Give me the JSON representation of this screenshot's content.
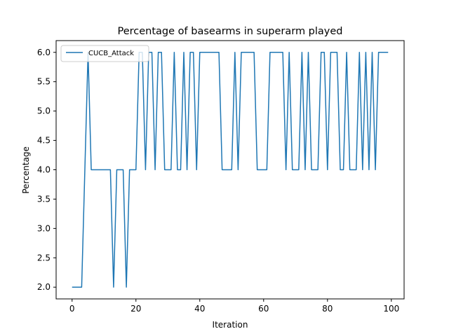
{
  "chart_data": {
    "type": "line",
    "title": "Percentage of basearms in superarm played",
    "xlabel": "Iteration",
    "ylabel": "Percentage",
    "xlim": [
      -5,
      104
    ],
    "ylim": [
      1.8,
      6.2
    ],
    "xticks": [
      0,
      20,
      40,
      60,
      80,
      100
    ],
    "yticks": [
      2.0,
      2.5,
      3.0,
      3.5,
      4.0,
      4.5,
      5.0,
      5.5,
      6.0
    ],
    "grid": false,
    "legend_position": "top-left",
    "series": [
      {
        "name": "CUCB_Attack",
        "color": "#1f77b4",
        "x": [
          0,
          1,
          2,
          3,
          4,
          5,
          6,
          7,
          8,
          9,
          10,
          11,
          12,
          13,
          14,
          15,
          16,
          17,
          18,
          19,
          20,
          21,
          22,
          23,
          24,
          25,
          26,
          27,
          28,
          29,
          30,
          31,
          32,
          33,
          34,
          35,
          36,
          37,
          38,
          39,
          40,
          41,
          42,
          43,
          44,
          45,
          46,
          47,
          48,
          49,
          50,
          51,
          52,
          53,
          54,
          55,
          56,
          57,
          58,
          59,
          60,
          61,
          62,
          63,
          64,
          65,
          66,
          67,
          68,
          69,
          70,
          71,
          72,
          73,
          74,
          75,
          76,
          77,
          78,
          79,
          80,
          81,
          82,
          83,
          84,
          85,
          86,
          87,
          88,
          89,
          90,
          91,
          92,
          93,
          94,
          95,
          96,
          97,
          98,
          99
        ],
        "y": [
          2,
          2,
          2,
          2,
          4,
          6,
          4,
          4,
          4,
          4,
          4,
          4,
          4,
          2,
          4,
          4,
          4,
          2,
          4,
          4,
          4,
          6,
          6,
          4,
          6,
          6,
          4,
          6,
          6,
          4,
          4,
          4,
          6,
          4,
          4,
          6,
          4,
          6,
          6,
          4,
          6,
          6,
          6,
          6,
          6,
          6,
          6,
          4,
          4,
          4,
          4,
          6,
          4,
          6,
          6,
          6,
          6,
          6,
          4,
          4,
          4,
          4,
          6,
          6,
          6,
          6,
          6,
          4,
          6,
          4,
          4,
          4,
          6,
          4,
          6,
          4,
          4,
          4,
          6,
          6,
          4,
          6,
          6,
          6,
          4,
          4,
          6,
          4,
          4,
          4,
          6,
          4,
          6,
          4,
          6,
          4,
          6,
          6,
          6,
          6
        ]
      }
    ]
  }
}
